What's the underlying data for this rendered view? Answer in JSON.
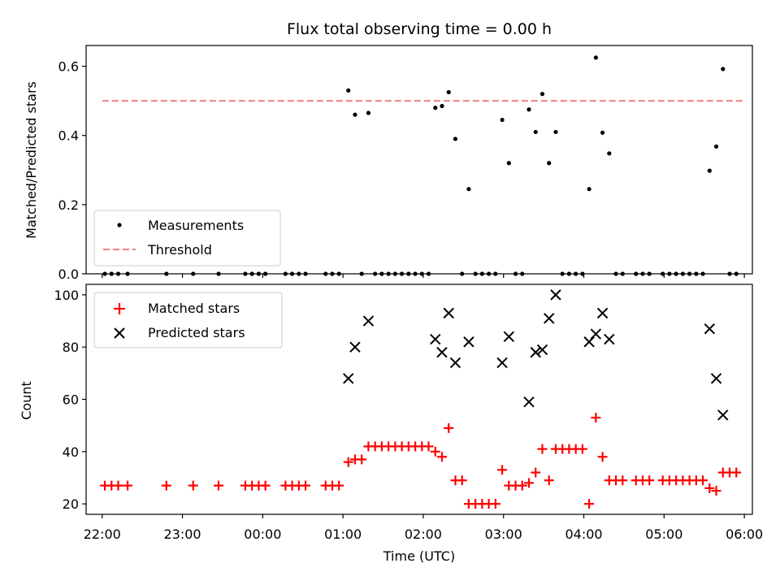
{
  "chart_data": [
    {
      "type": "scatter",
      "title": "Flux total observing time = 0.00 h",
      "xlabel": "",
      "ylabel": "Matched/Predicted stars",
      "xlim": [
        "21:48",
        "06:06"
      ],
      "ylim": [
        0,
        0.66
      ],
      "x_ticks": [
        "22:00",
        "23:00",
        "00:00",
        "01:00",
        "02:00",
        "03:00",
        "04:00",
        "05:00",
        "06:00"
      ],
      "y_ticks": [
        0.0,
        0.2,
        0.4,
        0.6
      ],
      "y_tick_labels": [
        "0.0",
        "0.2",
        "0.4",
        "0.6"
      ],
      "legend": {
        "position": "lower-left",
        "entries": [
          "Measurements",
          "Threshold"
        ]
      },
      "threshold": {
        "name": "Threshold",
        "value": 0.5,
        "x_range": [
          "22:00",
          "06:00"
        ],
        "color": "#f08080",
        "style": "dashed"
      },
      "series": [
        {
          "name": "Measurements",
          "marker": "dot",
          "color": "#000000",
          "points": [
            [
              "22:02",
              0
            ],
            [
              "22:07",
              0
            ],
            [
              "22:12",
              0
            ],
            [
              "22:19",
              0
            ],
            [
              "22:48",
              0
            ],
            [
              "23:08",
              0
            ],
            [
              "23:27",
              0
            ],
            [
              "23:47",
              0
            ],
            [
              "23:52",
              0
            ],
            [
              "23:57",
              0
            ],
            [
              "00:02",
              0
            ],
            [
              "00:17",
              0
            ],
            [
              "00:22",
              0
            ],
            [
              "00:27",
              0
            ],
            [
              "00:32",
              0
            ],
            [
              "00:47",
              0
            ],
            [
              "00:52",
              0
            ],
            [
              "00:57",
              0
            ],
            [
              "01:04",
              0.53
            ],
            [
              "01:09",
              0.46
            ],
            [
              "01:14",
              0
            ],
            [
              "01:19",
              0.465
            ],
            [
              "01:24",
              0
            ],
            [
              "01:29",
              0
            ],
            [
              "01:34",
              0
            ],
            [
              "01:39",
              0
            ],
            [
              "01:44",
              0
            ],
            [
              "01:49",
              0
            ],
            [
              "01:54",
              0
            ],
            [
              "01:59",
              0
            ],
            [
              "02:04",
              0
            ],
            [
              "02:09",
              0.48
            ],
            [
              "02:14",
              0.485
            ],
            [
              "02:19",
              0.525
            ],
            [
              "02:24",
              0.39
            ],
            [
              "02:29",
              0
            ],
            [
              "02:34",
              0.245
            ],
            [
              "02:39",
              0
            ],
            [
              "02:44",
              0
            ],
            [
              "02:49",
              0
            ],
            [
              "02:54",
              0
            ],
            [
              "02:59",
              0.445
            ],
            [
              "03:04",
              0.32
            ],
            [
              "03:09",
              0
            ],
            [
              "03:14",
              0
            ],
            [
              "03:19",
              0.475
            ],
            [
              "03:24",
              0.41
            ],
            [
              "03:29",
              0.52
            ],
            [
              "03:34",
              0.32
            ],
            [
              "03:39",
              0.41
            ],
            [
              "03:44",
              0
            ],
            [
              "03:49",
              0
            ],
            [
              "03:54",
              0
            ],
            [
              "03:59",
              0
            ],
            [
              "04:04",
              0.245
            ],
            [
              "04:09",
              0.625
            ],
            [
              "04:14",
              0.408
            ],
            [
              "04:19",
              0.348
            ],
            [
              "04:24",
              0
            ],
            [
              "04:29",
              0
            ],
            [
              "04:39",
              0
            ],
            [
              "04:44",
              0
            ],
            [
              "04:49",
              0
            ],
            [
              "04:59",
              0
            ],
            [
              "05:04",
              0
            ],
            [
              "05:09",
              0
            ],
            [
              "05:14",
              0
            ],
            [
              "05:19",
              0
            ],
            [
              "05:24",
              0
            ],
            [
              "05:29",
              0
            ],
            [
              "05:34",
              0.298
            ],
            [
              "05:39",
              0.368
            ],
            [
              "05:44",
              0.592
            ],
            [
              "05:49",
              0
            ],
            [
              "05:54",
              0
            ]
          ]
        }
      ]
    },
    {
      "type": "scatter",
      "title": "",
      "xlabel": "Time (UTC)",
      "ylabel": "Count",
      "xlim": [
        "21:48",
        "06:06"
      ],
      "ylim": [
        16,
        104
      ],
      "x_ticks": [
        "22:00",
        "23:00",
        "00:00",
        "01:00",
        "02:00",
        "03:00",
        "04:00",
        "05:00",
        "06:00"
      ],
      "y_ticks": [
        20,
        40,
        60,
        80,
        100
      ],
      "y_tick_labels": [
        "20",
        "40",
        "60",
        "80",
        "100"
      ],
      "legend": {
        "position": "top-left",
        "entries": [
          "Matched stars",
          "Predicted stars"
        ]
      },
      "series": [
        {
          "name": "Matched stars",
          "marker": "plus",
          "color": "#ff0000",
          "points": [
            [
              "22:02",
              27
            ],
            [
              "22:07",
              27
            ],
            [
              "22:12",
              27
            ],
            [
              "22:19",
              27
            ],
            [
              "22:48",
              27
            ],
            [
              "23:08",
              27
            ],
            [
              "23:27",
              27
            ],
            [
              "23:47",
              27
            ],
            [
              "23:52",
              27
            ],
            [
              "23:57",
              27
            ],
            [
              "00:02",
              27
            ],
            [
              "00:17",
              27
            ],
            [
              "00:22",
              27
            ],
            [
              "00:27",
              27
            ],
            [
              "00:32",
              27
            ],
            [
              "00:47",
              27
            ],
            [
              "00:52",
              27
            ],
            [
              "00:57",
              27
            ],
            [
              "01:04",
              36
            ],
            [
              "01:09",
              37
            ],
            [
              "01:14",
              37
            ],
            [
              "01:19",
              42
            ],
            [
              "01:24",
              42
            ],
            [
              "01:29",
              42
            ],
            [
              "01:34",
              42
            ],
            [
              "01:39",
              42
            ],
            [
              "01:44",
              42
            ],
            [
              "01:49",
              42
            ],
            [
              "01:54",
              42
            ],
            [
              "01:59",
              42
            ],
            [
              "02:04",
              42
            ],
            [
              "02:09",
              40
            ],
            [
              "02:14",
              38
            ],
            [
              "02:19",
              49
            ],
            [
              "02:24",
              29
            ],
            [
              "02:29",
              29
            ],
            [
              "02:34",
              20
            ],
            [
              "02:39",
              20
            ],
            [
              "02:44",
              20
            ],
            [
              "02:49",
              20
            ],
            [
              "02:54",
              20
            ],
            [
              "02:59",
              33
            ],
            [
              "03:04",
              27
            ],
            [
              "03:09",
              27
            ],
            [
              "03:14",
              27
            ],
            [
              "03:19",
              28
            ],
            [
              "03:24",
              32
            ],
            [
              "03:29",
              41
            ],
            [
              "03:34",
              29
            ],
            [
              "03:39",
              41
            ],
            [
              "03:44",
              41
            ],
            [
              "03:49",
              41
            ],
            [
              "03:54",
              41
            ],
            [
              "03:59",
              41
            ],
            [
              "04:04",
              20
            ],
            [
              "04:09",
              53
            ],
            [
              "04:14",
              38
            ],
            [
              "04:19",
              29
            ],
            [
              "04:24",
              29
            ],
            [
              "04:29",
              29
            ],
            [
              "04:39",
              29
            ],
            [
              "04:44",
              29
            ],
            [
              "04:49",
              29
            ],
            [
              "04:59",
              29
            ],
            [
              "05:04",
              29
            ],
            [
              "05:09",
              29
            ],
            [
              "05:14",
              29
            ],
            [
              "05:19",
              29
            ],
            [
              "05:24",
              29
            ],
            [
              "05:29",
              29
            ],
            [
              "05:34",
              26
            ],
            [
              "05:39",
              25
            ],
            [
              "05:44",
              32
            ],
            [
              "05:49",
              32
            ],
            [
              "05:54",
              32
            ]
          ]
        },
        {
          "name": "Predicted stars",
          "marker": "x",
          "color": "#000000",
          "points": [
            [
              "01:04",
              68
            ],
            [
              "01:09",
              80
            ],
            [
              "01:19",
              90
            ],
            [
              "02:09",
              83
            ],
            [
              "02:14",
              78
            ],
            [
              "02:19",
              93
            ],
            [
              "02:24",
              74
            ],
            [
              "02:34",
              82
            ],
            [
              "02:59",
              74
            ],
            [
              "03:04",
              84
            ],
            [
              "03:19",
              59
            ],
            [
              "03:24",
              78
            ],
            [
              "03:29",
              79
            ],
            [
              "03:34",
              91
            ],
            [
              "03:39",
              100
            ],
            [
              "04:04",
              82
            ],
            [
              "04:09",
              85
            ],
            [
              "04:14",
              93
            ],
            [
              "04:19",
              83
            ],
            [
              "05:34",
              87
            ],
            [
              "05:39",
              68
            ],
            [
              "05:44",
              54
            ]
          ]
        }
      ]
    }
  ]
}
